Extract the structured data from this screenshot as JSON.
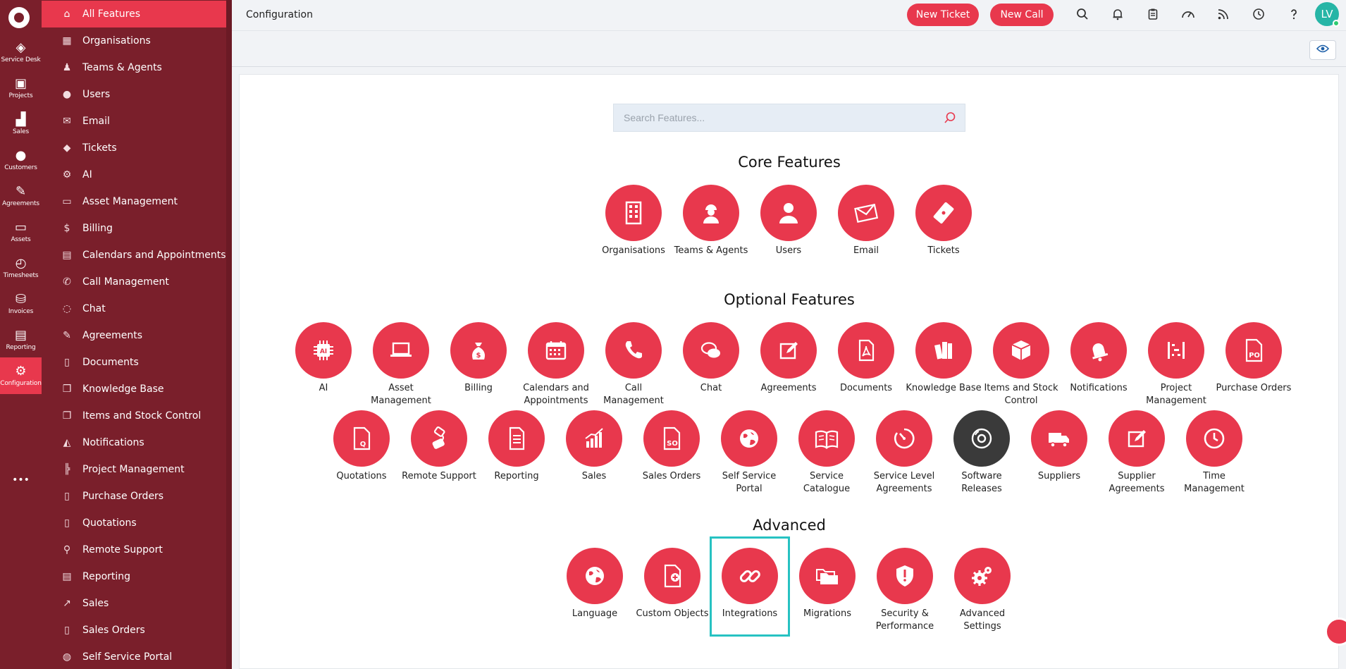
{
  "rail": {
    "items": [
      {
        "label": "Service Desk",
        "icon": "ticket-icon"
      },
      {
        "label": "Projects",
        "icon": "briefcase-icon"
      },
      {
        "label": "Sales",
        "icon": "chart-icon"
      },
      {
        "label": "Customers",
        "icon": "user-icon"
      },
      {
        "label": "Agreements",
        "icon": "pen-icon"
      },
      {
        "label": "Assets",
        "icon": "laptop-icon"
      },
      {
        "label": "Timesheets",
        "icon": "clock-icon"
      },
      {
        "label": "Invoices",
        "icon": "money-bag-icon"
      },
      {
        "label": "Reporting",
        "icon": "document-icon"
      },
      {
        "label": "Configuration",
        "icon": "gears-icon"
      },
      {
        "label": "",
        "icon": "more-icon"
      }
    ]
  },
  "sidebar": {
    "items": [
      {
        "label": "All Features",
        "glyph": "⌂"
      },
      {
        "label": "Organisations",
        "glyph": "▦"
      },
      {
        "label": "Teams & Agents",
        "glyph": "♟"
      },
      {
        "label": "Users",
        "glyph": "●"
      },
      {
        "label": "Email",
        "glyph": "✉"
      },
      {
        "label": "Tickets",
        "glyph": "◆"
      },
      {
        "label": "AI",
        "glyph": "⚙"
      },
      {
        "label": "Asset Management",
        "glyph": "▭"
      },
      {
        "label": "Billing",
        "glyph": "$"
      },
      {
        "label": "Calendars and Appointments",
        "glyph": "▤"
      },
      {
        "label": "Call Management",
        "glyph": "✆"
      },
      {
        "label": "Chat",
        "glyph": "◌"
      },
      {
        "label": "Agreements",
        "glyph": "✎"
      },
      {
        "label": "Documents",
        "glyph": "▯"
      },
      {
        "label": "Knowledge Base",
        "glyph": "❒"
      },
      {
        "label": "Items and Stock Control",
        "glyph": "❐"
      },
      {
        "label": "Notifications",
        "glyph": "◭"
      },
      {
        "label": "Project Management",
        "glyph": "╠"
      },
      {
        "label": "Purchase Orders",
        "glyph": "▯"
      },
      {
        "label": "Quotations",
        "glyph": "▯"
      },
      {
        "label": "Remote Support",
        "glyph": "⚲"
      },
      {
        "label": "Reporting",
        "glyph": "▤"
      },
      {
        "label": "Sales",
        "glyph": "↗"
      },
      {
        "label": "Sales Orders",
        "glyph": "▯"
      },
      {
        "label": "Self Service Portal",
        "glyph": "◍"
      }
    ]
  },
  "header": {
    "title": "Configuration",
    "new_ticket": "New Ticket",
    "new_call": "New Call",
    "avatar_initials": "LV"
  },
  "search": {
    "placeholder": "Search Features..."
  },
  "sections": {
    "core": "Core Features",
    "optional": "Optional Features",
    "advanced": "Advanced"
  },
  "core_features": [
    {
      "label": "Organisations",
      "icon": "building-icon"
    },
    {
      "label": "Teams & Agents",
      "icon": "worker-icon"
    },
    {
      "label": "Users",
      "icon": "user-icon"
    },
    {
      "label": "Email",
      "icon": "envelope-icon"
    },
    {
      "label": "Tickets",
      "icon": "ticket-icon"
    }
  ],
  "optional_row1": [
    {
      "label": "AI",
      "icon": "ai-chip-icon"
    },
    {
      "label": "Asset Management",
      "icon": "laptop-icon"
    },
    {
      "label": "Billing",
      "icon": "money-bag-icon"
    },
    {
      "label": "Calendars and Appointments",
      "icon": "calendar-icon"
    },
    {
      "label": "Call Management",
      "icon": "phone-icon"
    },
    {
      "label": "Chat",
      "icon": "chat-icon"
    },
    {
      "label": "Agreements",
      "icon": "edit-icon"
    },
    {
      "label": "Documents",
      "icon": "pdf-icon"
    },
    {
      "label": "Knowledge Base",
      "icon": "books-icon"
    },
    {
      "label": "Items and Stock Control",
      "icon": "box-icon"
    },
    {
      "label": "Notifications",
      "icon": "bell-icon"
    },
    {
      "label": "Project Management",
      "icon": "gantt-icon"
    },
    {
      "label": "Purchase Orders",
      "icon": "po-file-icon"
    }
  ],
  "optional_row2": [
    {
      "label": "Quotations",
      "icon": "quote-file-icon"
    },
    {
      "label": "Remote Support",
      "icon": "remote-icon"
    },
    {
      "label": "Reporting",
      "icon": "report-icon"
    },
    {
      "label": "Sales",
      "icon": "sales-chart-icon"
    },
    {
      "label": "Sales Orders",
      "icon": "so-file-icon"
    },
    {
      "label": "Self Service Portal",
      "icon": "globe-icon"
    },
    {
      "label": "Service Catalogue",
      "icon": "book-open-icon"
    },
    {
      "label": "Service Level Agreements",
      "icon": "timer-icon"
    },
    {
      "label": "Software Releases",
      "icon": "disc-icon"
    },
    {
      "label": "Suppliers",
      "icon": "truck-icon"
    },
    {
      "label": "Supplier Agreements",
      "icon": "edit-icon"
    },
    {
      "label": "Time Management",
      "icon": "clock-icon"
    }
  ],
  "advanced_features": [
    {
      "label": "Language",
      "icon": "globe-icon"
    },
    {
      "label": "Custom Objects",
      "icon": "file-plus-icon"
    },
    {
      "label": "Integrations",
      "icon": "link-icon"
    },
    {
      "label": "Migrations",
      "icon": "folders-icon"
    },
    {
      "label": "Security & Performance",
      "icon": "shield-icon"
    },
    {
      "label": "Advanced Settings",
      "icon": "gears-icon"
    }
  ],
  "colors": {
    "accent": "#e8384d",
    "sidebar": "#7a1f2b",
    "highlight": "#27c2c2",
    "dark_circle": "#3a3a3a"
  }
}
